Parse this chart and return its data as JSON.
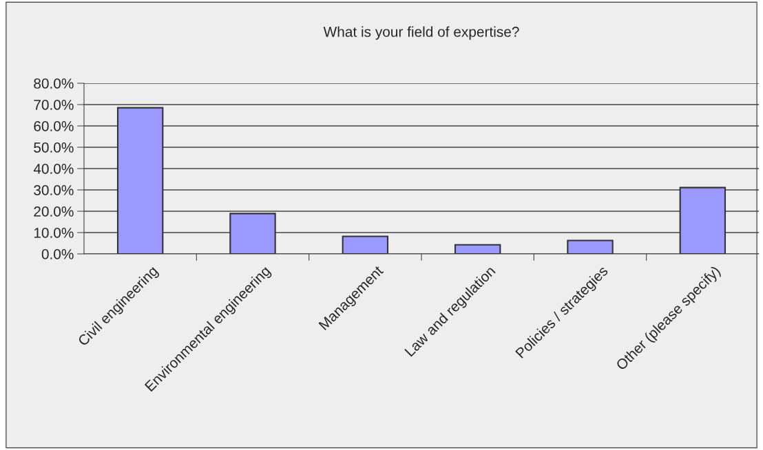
{
  "chart_data": {
    "type": "bar",
    "title": "What is your field of expertise?",
    "categories": [
      "Civil engineering",
      "Environmental engineering",
      "Management",
      "Law and regulation",
      "Policies / strategies",
      "Other (please specify)"
    ],
    "values": [
      68.5,
      18.9,
      8.2,
      4.3,
      6.3,
      31.1
    ],
    "color": "#9999ff",
    "ylim": [
      0,
      80
    ],
    "yticks": [
      {
        "value": 0,
        "label": "0.0%"
      },
      {
        "value": 10,
        "label": "10.0%"
      },
      {
        "value": 20,
        "label": "20.0%"
      },
      {
        "value": 30,
        "label": "30.0%"
      },
      {
        "value": 40,
        "label": "40.0%"
      },
      {
        "value": 50,
        "label": "50.0%"
      },
      {
        "value": 60,
        "label": "60.0%"
      },
      {
        "value": 70,
        "label": "70.0%"
      },
      {
        "value": 80,
        "label": "80.0%"
      }
    ],
    "grid": "y",
    "legend": false
  }
}
